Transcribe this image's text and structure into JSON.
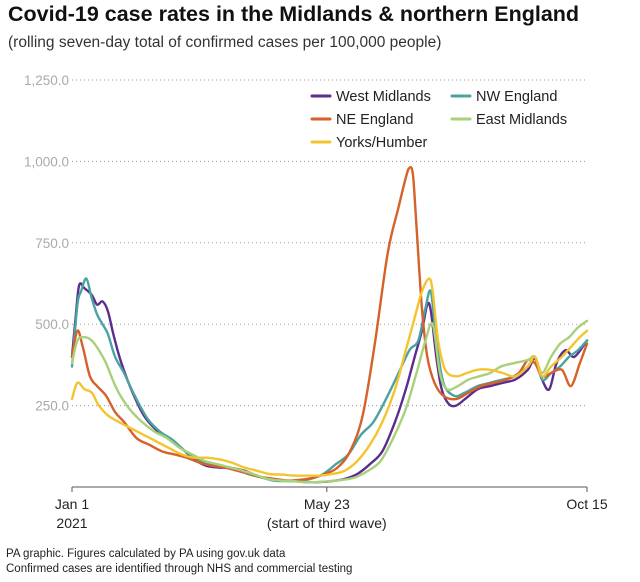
{
  "title": "Covid-19 case rates in the Midlands & northern England",
  "subtitle": "(rolling seven-day total of confirmed cases per 100,000 people)",
  "footer": {
    "line1": "PA graphic. Figures calculated by PA using gov.uk data",
    "line2": "Confirmed cases are identified through NHS and commercial testing"
  },
  "chart_data": {
    "type": "line",
    "title": "Covid-19 case rates in the Midlands & northern England",
    "subtitle": "(rolling seven-day total of confirmed cases per 100,000 people)",
    "ylim": [
      0,
      1250
    ],
    "yticks": [
      {
        "value": 250,
        "label": "250.0"
      },
      {
        "value": 500,
        "label": "500.0"
      },
      {
        "value": 750,
        "label": "750.0"
      },
      {
        "value": 1000,
        "label": "1,000.0"
      },
      {
        "value": 1250,
        "label": "1,250.0"
      }
    ],
    "xlim": [
      "2021-01-01",
      "2021-10-15"
    ],
    "xticks": [
      {
        "date": "2021-01-01",
        "label": "Jan 1",
        "sublabel": "2021"
      },
      {
        "date": "2021-05-23",
        "label": "May 23",
        "sublabel": "(start of third wave)"
      },
      {
        "date": "2021-10-15",
        "label": "Oct 15",
        "sublabel": ""
      }
    ],
    "grid": "horizontal dotted",
    "legend_position": "top-right",
    "series": [
      {
        "name": "West Midlands",
        "color": "#5b2d8e",
        "points": [
          [
            "2021-01-01",
            400
          ],
          [
            "2021-01-03",
            520
          ],
          [
            "2021-01-05",
            620
          ],
          [
            "2021-01-08",
            610
          ],
          [
            "2021-01-12",
            590
          ],
          [
            "2021-01-15",
            560
          ],
          [
            "2021-01-18",
            570
          ],
          [
            "2021-01-21",
            540
          ],
          [
            "2021-01-24",
            470
          ],
          [
            "2021-01-28",
            390
          ],
          [
            "2021-02-03",
            300
          ],
          [
            "2021-02-10",
            220
          ],
          [
            "2021-02-17",
            175
          ],
          [
            "2021-02-24",
            150
          ],
          [
            "2021-03-03",
            120
          ],
          [
            "2021-03-10",
            85
          ],
          [
            "2021-03-17",
            65
          ],
          [
            "2021-03-24",
            60
          ],
          [
            "2021-03-31",
            58
          ],
          [
            "2021-04-07",
            50
          ],
          [
            "2021-04-14",
            35
          ],
          [
            "2021-04-21",
            25
          ],
          [
            "2021-04-28",
            20
          ],
          [
            "2021-05-05",
            18
          ],
          [
            "2021-05-12",
            15
          ],
          [
            "2021-05-19",
            15
          ],
          [
            "2021-05-26",
            18
          ],
          [
            "2021-06-02",
            25
          ],
          [
            "2021-06-09",
            40
          ],
          [
            "2021-06-16",
            70
          ],
          [
            "2021-06-23",
            110
          ],
          [
            "2021-06-30",
            200
          ],
          [
            "2021-07-06",
            300
          ],
          [
            "2021-07-11",
            400
          ],
          [
            "2021-07-15",
            480
          ],
          [
            "2021-07-18",
            560
          ],
          [
            "2021-07-20",
            540
          ],
          [
            "2021-07-23",
            400
          ],
          [
            "2021-07-26",
            300
          ],
          [
            "2021-07-30",
            255
          ],
          [
            "2021-08-03",
            250
          ],
          [
            "2021-08-08",
            270
          ],
          [
            "2021-08-15",
            300
          ],
          [
            "2021-08-22",
            310
          ],
          [
            "2021-08-29",
            320
          ],
          [
            "2021-09-05",
            330
          ],
          [
            "2021-09-12",
            360
          ],
          [
            "2021-09-16",
            395
          ],
          [
            "2021-09-20",
            330
          ],
          [
            "2021-09-24",
            300
          ],
          [
            "2021-09-28",
            380
          ],
          [
            "2021-10-03",
            420
          ],
          [
            "2021-10-08",
            400
          ],
          [
            "2021-10-15",
            450
          ]
        ]
      },
      {
        "name": "NW England",
        "color": "#4aa3a1",
        "points": [
          [
            "2021-01-01",
            370
          ],
          [
            "2021-01-04",
            560
          ],
          [
            "2021-01-06",
            600
          ],
          [
            "2021-01-09",
            640
          ],
          [
            "2021-01-12",
            580
          ],
          [
            "2021-01-15",
            530
          ],
          [
            "2021-01-18",
            500
          ],
          [
            "2021-01-21",
            470
          ],
          [
            "2021-01-25",
            400
          ],
          [
            "2021-01-30",
            350
          ],
          [
            "2021-02-05",
            280
          ],
          [
            "2021-02-12",
            210
          ],
          [
            "2021-02-19",
            170
          ],
          [
            "2021-02-26",
            145
          ],
          [
            "2021-03-05",
            110
          ],
          [
            "2021-03-12",
            85
          ],
          [
            "2021-03-19",
            70
          ],
          [
            "2021-03-26",
            65
          ],
          [
            "2021-04-02",
            55
          ],
          [
            "2021-04-09",
            40
          ],
          [
            "2021-04-16",
            30
          ],
          [
            "2021-04-23",
            20
          ],
          [
            "2021-04-30",
            18
          ],
          [
            "2021-05-07",
            20
          ],
          [
            "2021-05-14",
            25
          ],
          [
            "2021-05-21",
            40
          ],
          [
            "2021-05-28",
            70
          ],
          [
            "2021-06-04",
            100
          ],
          [
            "2021-06-11",
            160
          ],
          [
            "2021-06-18",
            200
          ],
          [
            "2021-06-25",
            270
          ],
          [
            "2021-07-02",
            350
          ],
          [
            "2021-07-08",
            420
          ],
          [
            "2021-07-13",
            450
          ],
          [
            "2021-07-17",
            550
          ],
          [
            "2021-07-20",
            600
          ],
          [
            "2021-07-23",
            450
          ],
          [
            "2021-07-27",
            320
          ],
          [
            "2021-08-02",
            280
          ],
          [
            "2021-08-08",
            290
          ],
          [
            "2021-08-15",
            310
          ],
          [
            "2021-08-22",
            320
          ],
          [
            "2021-08-29",
            330
          ],
          [
            "2021-09-05",
            340
          ],
          [
            "2021-09-12",
            370
          ],
          [
            "2021-09-16",
            400
          ],
          [
            "2021-09-20",
            330
          ],
          [
            "2021-09-25",
            350
          ],
          [
            "2021-09-30",
            370
          ],
          [
            "2021-10-05",
            400
          ],
          [
            "2021-10-10",
            420
          ],
          [
            "2021-10-15",
            450
          ]
        ]
      },
      {
        "name": "NE England",
        "color": "#d4622a",
        "points": [
          [
            "2021-01-01",
            400
          ],
          [
            "2021-01-04",
            480
          ],
          [
            "2021-01-07",
            430
          ],
          [
            "2021-01-11",
            340
          ],
          [
            "2021-01-15",
            310
          ],
          [
            "2021-01-20",
            280
          ],
          [
            "2021-01-25",
            230
          ],
          [
            "2021-01-30",
            200
          ],
          [
            "2021-02-06",
            150
          ],
          [
            "2021-02-13",
            130
          ],
          [
            "2021-02-20",
            110
          ],
          [
            "2021-02-27",
            100
          ],
          [
            "2021-03-06",
            90
          ],
          [
            "2021-03-13",
            75
          ],
          [
            "2021-03-20",
            65
          ],
          [
            "2021-03-27",
            60
          ],
          [
            "2021-04-03",
            50
          ],
          [
            "2021-04-10",
            40
          ],
          [
            "2021-04-17",
            30
          ],
          [
            "2021-04-24",
            25
          ],
          [
            "2021-05-01",
            20
          ],
          [
            "2021-05-08",
            22
          ],
          [
            "2021-05-15",
            28
          ],
          [
            "2021-05-22",
            40
          ],
          [
            "2021-05-29",
            60
          ],
          [
            "2021-06-05",
            110
          ],
          [
            "2021-06-12",
            220
          ],
          [
            "2021-06-19",
            450
          ],
          [
            "2021-06-26",
            720
          ],
          [
            "2021-07-02",
            860
          ],
          [
            "2021-07-06",
            950
          ],
          [
            "2021-07-08",
            980
          ],
          [
            "2021-07-10",
            960
          ],
          [
            "2021-07-12",
            800
          ],
          [
            "2021-07-15",
            550
          ],
          [
            "2021-07-18",
            400
          ],
          [
            "2021-07-22",
            320
          ],
          [
            "2021-07-27",
            280
          ],
          [
            "2021-08-03",
            270
          ],
          [
            "2021-08-10",
            290
          ],
          [
            "2021-08-17",
            310
          ],
          [
            "2021-08-24",
            320
          ],
          [
            "2021-08-31",
            330
          ],
          [
            "2021-09-07",
            350
          ],
          [
            "2021-09-12",
            390
          ],
          [
            "2021-09-16",
            380
          ],
          [
            "2021-09-20",
            340
          ],
          [
            "2021-09-25",
            350
          ],
          [
            "2021-10-01",
            360
          ],
          [
            "2021-10-06",
            310
          ],
          [
            "2021-10-11",
            380
          ],
          [
            "2021-10-15",
            440
          ]
        ]
      },
      {
        "name": "East Midlands",
        "color": "#a9d07a",
        "points": [
          [
            "2021-01-01",
            380
          ],
          [
            "2021-01-04",
            450
          ],
          [
            "2021-01-08",
            460
          ],
          [
            "2021-01-12",
            450
          ],
          [
            "2021-01-16",
            420
          ],
          [
            "2021-01-20",
            380
          ],
          [
            "2021-01-26",
            300
          ],
          [
            "2021-02-02",
            240
          ],
          [
            "2021-02-09",
            200
          ],
          [
            "2021-02-16",
            170
          ],
          [
            "2021-02-23",
            150
          ],
          [
            "2021-03-02",
            120
          ],
          [
            "2021-03-09",
            100
          ],
          [
            "2021-03-16",
            80
          ],
          [
            "2021-03-23",
            70
          ],
          [
            "2021-03-30",
            60
          ],
          [
            "2021-04-06",
            50
          ],
          [
            "2021-04-13",
            38
          ],
          [
            "2021-04-20",
            25
          ],
          [
            "2021-04-27",
            20
          ],
          [
            "2021-05-04",
            18
          ],
          [
            "2021-05-11",
            15
          ],
          [
            "2021-05-18",
            15
          ],
          [
            "2021-05-25",
            18
          ],
          [
            "2021-06-01",
            22
          ],
          [
            "2021-06-08",
            30
          ],
          [
            "2021-06-15",
            50
          ],
          [
            "2021-06-22",
            80
          ],
          [
            "2021-06-29",
            150
          ],
          [
            "2021-07-06",
            240
          ],
          [
            "2021-07-12",
            350
          ],
          [
            "2021-07-17",
            450
          ],
          [
            "2021-07-21",
            500
          ],
          [
            "2021-07-25",
            350
          ],
          [
            "2021-07-29",
            300
          ],
          [
            "2021-08-04",
            310
          ],
          [
            "2021-08-10",
            330
          ],
          [
            "2021-08-16",
            340
          ],
          [
            "2021-08-22",
            350
          ],
          [
            "2021-08-28",
            370
          ],
          [
            "2021-09-04",
            380
          ],
          [
            "2021-09-12",
            390
          ],
          [
            "2021-09-16",
            400
          ],
          [
            "2021-09-20",
            350
          ],
          [
            "2021-09-25",
            400
          ],
          [
            "2021-09-30",
            440
          ],
          [
            "2021-10-05",
            460
          ],
          [
            "2021-10-10",
            490
          ],
          [
            "2021-10-15",
            510
          ]
        ]
      },
      {
        "name": "Yorks/Humber",
        "color": "#f4c430",
        "points": [
          [
            "2021-01-01",
            270
          ],
          [
            "2021-01-04",
            320
          ],
          [
            "2021-01-08",
            300
          ],
          [
            "2021-01-12",
            290
          ],
          [
            "2021-01-16",
            250
          ],
          [
            "2021-01-21",
            220
          ],
          [
            "2021-01-27",
            200
          ],
          [
            "2021-02-03",
            180
          ],
          [
            "2021-02-10",
            160
          ],
          [
            "2021-02-17",
            140
          ],
          [
            "2021-02-24",
            120
          ],
          [
            "2021-03-03",
            100
          ],
          [
            "2021-03-10",
            90
          ],
          [
            "2021-03-17",
            90
          ],
          [
            "2021-03-24",
            85
          ],
          [
            "2021-03-31",
            75
          ],
          [
            "2021-04-07",
            60
          ],
          [
            "2021-04-14",
            50
          ],
          [
            "2021-04-21",
            40
          ],
          [
            "2021-04-28",
            38
          ],
          [
            "2021-05-05",
            35
          ],
          [
            "2021-05-12",
            35
          ],
          [
            "2021-05-19",
            35
          ],
          [
            "2021-05-26",
            40
          ],
          [
            "2021-06-02",
            50
          ],
          [
            "2021-06-09",
            80
          ],
          [
            "2021-06-16",
            130
          ],
          [
            "2021-06-23",
            200
          ],
          [
            "2021-06-30",
            300
          ],
          [
            "2021-07-06",
            420
          ],
          [
            "2021-07-11",
            520
          ],
          [
            "2021-07-15",
            600
          ],
          [
            "2021-07-19",
            640
          ],
          [
            "2021-07-21",
            600
          ],
          [
            "2021-07-24",
            450
          ],
          [
            "2021-07-28",
            360
          ],
          [
            "2021-08-03",
            340
          ],
          [
            "2021-08-09",
            350
          ],
          [
            "2021-08-15",
            360
          ],
          [
            "2021-08-22",
            360
          ],
          [
            "2021-08-29",
            350
          ],
          [
            "2021-09-05",
            340
          ],
          [
            "2021-09-12",
            370
          ],
          [
            "2021-09-16",
            400
          ],
          [
            "2021-09-20",
            340
          ],
          [
            "2021-09-25",
            370
          ],
          [
            "2021-10-01",
            400
          ],
          [
            "2021-10-06",
            430
          ],
          [
            "2021-10-11",
            460
          ],
          [
            "2021-10-15",
            480
          ]
        ]
      }
    ]
  }
}
